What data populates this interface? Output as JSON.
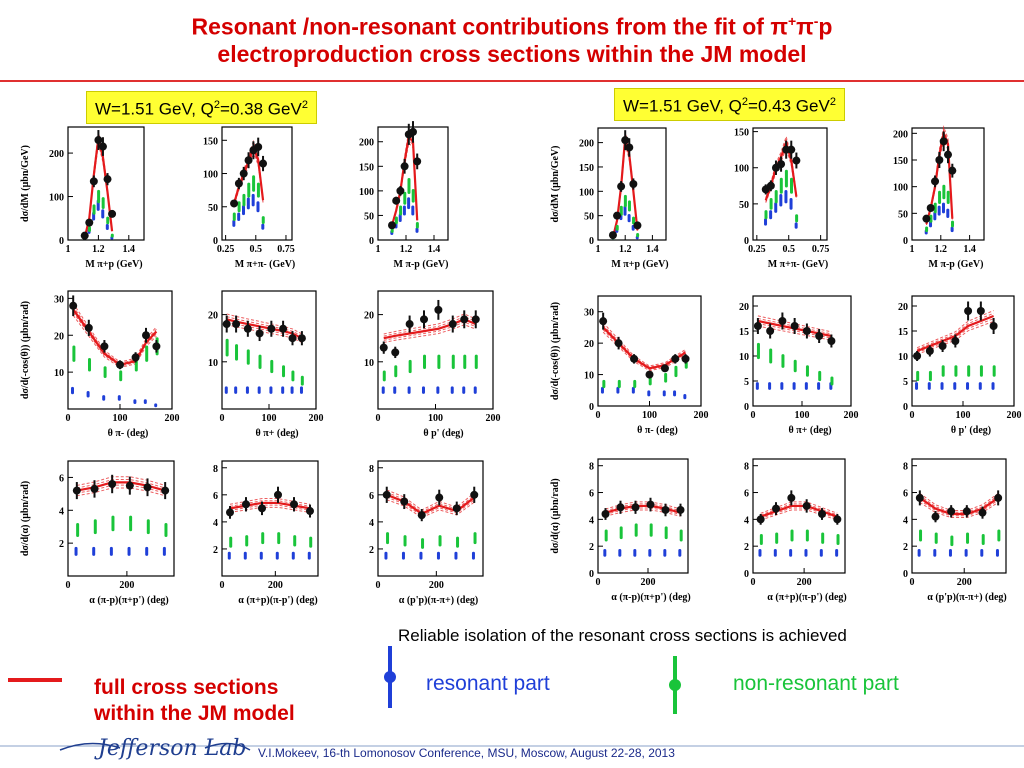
{
  "title": {
    "line1_prefix": "Resonant /non-resonant contributions  from the fit of  π",
    "sup_plus": "+",
    "mid": "π",
    "sup_minus": "-",
    "suffix": "p",
    "line2": "electroproduction cross sections within the JM model"
  },
  "left_label": {
    "prefix": "W=1.51 GeV, Q",
    "sup": "2",
    "mid": "=0.38 GeV",
    "sup2": "2"
  },
  "right_label": {
    "prefix": "W=1.51 GeV, Q",
    "sup": "2",
    "mid": "=0.43 GeV",
    "sup2": "2"
  },
  "note": "Reliable isolation of the resonant cross sections is achieved",
  "legend": {
    "full": "full cross sections\nwithin the JM model",
    "full_line1": "full cross sections",
    "full_line2": "within the JM model",
    "resonant": "resonant part",
    "nonresonant": "non-resonant part"
  },
  "footer": "V.I.Mokeev, 16-th Lomonosov Conference, MSU, Moscow, August 22-28, 2013",
  "logo_text": "Jefferson Lab",
  "colors": {
    "full": "#e41a1c",
    "resonant": "#1f3fd8",
    "nonresonant": "#19c43a",
    "data": "#111111"
  },
  "chart_data": [
    {
      "type": "scatter",
      "id": "L-r1c1",
      "ylabel": "dσ/dM (μbn/GeV)",
      "xlabel": "M_π+p (GeV)",
      "xticks": [
        "1",
        "1.2",
        "1.4"
      ],
      "xlim": [
        1.0,
        1.5
      ],
      "ylim": [
        0,
        260
      ],
      "yticks": [
        "0",
        "100",
        "200"
      ],
      "x": [
        1.11,
        1.14,
        1.17,
        1.2,
        1.23,
        1.26,
        1.29
      ],
      "data": [
        10,
        40,
        135,
        230,
        215,
        140,
        60
      ],
      "full": [
        5,
        50,
        150,
        235,
        190,
        110,
        20
      ],
      "resonant": [
        5,
        20,
        55,
        80,
        60,
        30,
        5
      ],
      "nonresonant": [
        5,
        25,
        70,
        100,
        85,
        45,
        10
      ]
    },
    {
      "type": "scatter",
      "id": "L-r1c2",
      "ylabel": "",
      "xlabel": "M_π+π- (GeV)",
      "xticks": [
        "0.25",
        "0.5",
        "0.75"
      ],
      "xlim": [
        0.22,
        0.8
      ],
      "ylim": [
        0,
        170
      ],
      "yticks": [
        "0",
        "50",
        "100",
        "150"
      ],
      "x": [
        0.32,
        0.36,
        0.4,
        0.44,
        0.48,
        0.52,
        0.56
      ],
      "data": [
        55,
        85,
        100,
        120,
        135,
        140,
        115
      ],
      "full": [
        55,
        80,
        100,
        118,
        140,
        120,
        60
      ],
      "resonant": [
        25,
        35,
        45,
        55,
        60,
        50,
        20
      ],
      "nonresonant": [
        35,
        50,
        60,
        75,
        85,
        75,
        30
      ]
    },
    {
      "type": "scatter",
      "id": "L-r1c3",
      "ylabel": "",
      "xlabel": "M_π-p (GeV)",
      "xticks": [
        "1",
        "1.2",
        "1.4"
      ],
      "xlim": [
        1.0,
        1.5
      ],
      "ylim": [
        0,
        230
      ],
      "yticks": [
        "0",
        "50",
        "100",
        "150",
        "200"
      ],
      "x": [
        1.1,
        1.13,
        1.16,
        1.19,
        1.22,
        1.25,
        1.28
      ],
      "data": [
        30,
        80,
        100,
        150,
        215,
        220,
        160
      ],
      "full": [
        30,
        60,
        100,
        160,
        210,
        200,
        40
      ],
      "resonant": [
        15,
        30,
        45,
        60,
        75,
        60,
        20
      ],
      "nonresonant": [
        20,
        40,
        60,
        85,
        110,
        90,
        30
      ]
    },
    {
      "type": "scatter",
      "id": "L-r2c1",
      "ylabel": "dσ/d(-cos(θ)) (μbn/rad)",
      "xlabel": "θ_π- (deg)",
      "xticks": [
        "0",
        "100",
        "200"
      ],
      "xlim": [
        0,
        200
      ],
      "ylim": [
        0,
        32
      ],
      "yticks": [
        "10",
        "20",
        "30"
      ],
      "x": [
        10,
        40,
        70,
        100,
        130,
        150,
        170
      ],
      "data": [
        28,
        22,
        17,
        12,
        14,
        20,
        17
      ],
      "full": [
        27,
        21,
        15,
        12,
        13,
        18,
        21
      ],
      "resonant": [
        5,
        4,
        3,
        3,
        2,
        2,
        1
      ],
      "nonresonant": [
        15,
        12,
        10,
        9,
        12,
        15,
        17
      ]
    },
    {
      "type": "scatter",
      "id": "L-r2c2",
      "ylabel": "",
      "xlabel": "θ_π+ (deg)",
      "xticks": [
        "0",
        "100",
        "200"
      ],
      "xlim": [
        0,
        200
      ],
      "ylim": [
        0,
        25
      ],
      "yticks": [
        "10",
        "20"
      ],
      "x": [
        10,
        30,
        55,
        80,
        105,
        130,
        150,
        170
      ],
      "data": [
        18,
        18,
        17,
        16,
        17,
        17,
        15,
        15
      ],
      "full": [
        19,
        18.5,
        18,
        17.5,
        17,
        16.5,
        16,
        15
      ],
      "resonant": [
        4,
        4,
        4,
        4,
        4,
        4,
        4,
        4
      ],
      "nonresonant": [
        13,
        12,
        11,
        10,
        9,
        8,
        7,
        6
      ]
    },
    {
      "type": "scatter",
      "id": "L-r2c3",
      "ylabel": "",
      "xlabel": "θ_p' (deg)",
      "xticks": [
        "0",
        "100",
        "200"
      ],
      "xlim": [
        0,
        200
      ],
      "ylim": [
        0,
        25
      ],
      "yticks": [
        "10",
        "20"
      ],
      "x": [
        10,
        30,
        55,
        80,
        105,
        130,
        150,
        170
      ],
      "data": [
        13,
        12,
        18,
        19,
        21,
        18,
        19,
        19
      ],
      "full": [
        15,
        15.5,
        16,
        16.5,
        17,
        18,
        19,
        18
      ],
      "resonant": [
        4,
        4,
        4,
        4,
        4,
        4,
        4,
        4
      ],
      "nonresonant": [
        7,
        8,
        9,
        10,
        10,
        10,
        10,
        10
      ]
    },
    {
      "type": "scatter",
      "id": "L-r3c1",
      "ylabel": "dσ/d(α) (μbn/rad)",
      "xlabel": "α_(π-p)(π+p') (deg)",
      "xticks": [
        "0",
        "200"
      ],
      "xlim": [
        0,
        360
      ],
      "ylim": [
        0,
        7
      ],
      "yticks": [
        "2",
        "4",
        "6"
      ],
      "x": [
        30,
        90,
        150,
        210,
        270,
        330
      ],
      "data": [
        5.2,
        5.3,
        5.6,
        5.5,
        5.4,
        5.2
      ],
      "full": [
        5.2,
        5.4,
        5.7,
        5.7,
        5.5,
        5.2
      ],
      "resonant": [
        1.5,
        1.5,
        1.5,
        1.5,
        1.5,
        1.5
      ],
      "nonresonant": [
        2.8,
        3.0,
        3.2,
        3.2,
        3.0,
        2.8
      ]
    },
    {
      "type": "scatter",
      "id": "L-r3c2",
      "ylabel": "",
      "xlabel": "α_(π+p)(π-p') (deg)",
      "xticks": [
        "0",
        "200"
      ],
      "xlim": [
        0,
        360
      ],
      "ylim": [
        0,
        8.5
      ],
      "yticks": [
        "2",
        "4",
        "6",
        "8"
      ],
      "x": [
        30,
        90,
        150,
        210,
        270,
        330
      ],
      "data": [
        4.7,
        5.3,
        5.0,
        6.0,
        5.3,
        4.8
      ],
      "full": [
        5,
        5.2,
        5.4,
        5.4,
        5.2,
        5
      ],
      "resonant": [
        1.5,
        1.5,
        1.5,
        1.5,
        1.5,
        1.5
      ],
      "nonresonant": [
        2.5,
        2.6,
        2.8,
        2.8,
        2.6,
        2.5
      ]
    },
    {
      "type": "scatter",
      "id": "L-r3c3",
      "ylabel": "",
      "xlabel": "α_(p'p)(π-π+) (deg)",
      "xticks": [
        "0",
        "200"
      ],
      "xlim": [
        0,
        360
      ],
      "ylim": [
        0,
        8.5
      ],
      "yticks": [
        "2",
        "4",
        "6",
        "8"
      ],
      "x": [
        30,
        90,
        150,
        210,
        270,
        330
      ],
      "data": [
        6.0,
        5.5,
        4.5,
        5.8,
        5.0,
        6.0
      ],
      "full": [
        6.0,
        5.5,
        4.6,
        5.2,
        4.8,
        5.8
      ],
      "resonant": [
        1.5,
        1.5,
        1.5,
        1.5,
        1.5,
        1.5
      ],
      "nonresonant": [
        2.8,
        2.6,
        2.4,
        2.6,
        2.5,
        2.8
      ]
    },
    {
      "type": "scatter",
      "id": "R-r1c1",
      "ylabel": "dσ/dM (μbn/GeV)",
      "xlabel": "M_π+p (GeV)",
      "xticks": [
        "1",
        "1.2",
        "1.4"
      ],
      "xlim": [
        1.0,
        1.5
      ],
      "ylim": [
        0,
        230
      ],
      "yticks": [
        "0",
        "50",
        "100",
        "150",
        "200"
      ],
      "x": [
        1.11,
        1.14,
        1.17,
        1.2,
        1.23,
        1.26,
        1.29
      ],
      "data": [
        10,
        50,
        110,
        205,
        190,
        115,
        30
      ],
      "full": [
        5,
        40,
        110,
        210,
        175,
        100,
        20
      ],
      "resonant": [
        5,
        20,
        50,
        60,
        45,
        25,
        5
      ],
      "nonresonant": [
        5,
        25,
        60,
        80,
        70,
        40,
        10
      ]
    },
    {
      "type": "scatter",
      "id": "R-r1c2",
      "ylabel": "",
      "xlabel": "M_π+π- (GeV)",
      "xticks": [
        "0.25",
        "0.5",
        "0.75"
      ],
      "xlim": [
        0.22,
        0.8
      ],
      "ylim": [
        0,
        155
      ],
      "yticks": [
        "0",
        "50",
        "100",
        "150"
      ],
      "x": [
        0.32,
        0.36,
        0.4,
        0.44,
        0.48,
        0.52,
        0.56
      ],
      "data": [
        70,
        75,
        100,
        105,
        125,
        125,
        110
      ],
      "full": [
        55,
        75,
        100,
        115,
        135,
        110,
        60
      ],
      "resonant": [
        25,
        35,
        45,
        55,
        60,
        50,
        20
      ],
      "nonresonant": [
        35,
        50,
        60,
        75,
        85,
        75,
        30
      ]
    },
    {
      "type": "scatter",
      "id": "R-r1c3",
      "ylabel": "",
      "xlabel": "M_π-p (GeV)",
      "xticks": [
        "1",
        "1.2",
        "1.4"
      ],
      "xlim": [
        1.0,
        1.5
      ],
      "ylim": [
        0,
        210
      ],
      "yticks": [
        "0",
        "50",
        "100",
        "150",
        "200"
      ],
      "x": [
        1.1,
        1.13,
        1.16,
        1.19,
        1.22,
        1.25,
        1.28
      ],
      "data": [
        40,
        60,
        110,
        150,
        185,
        160,
        130
      ],
      "full": [
        30,
        60,
        100,
        160,
        200,
        180,
        40
      ],
      "resonant": [
        15,
        30,
        45,
        55,
        60,
        50,
        20
      ],
      "nonresonant": [
        20,
        40,
        60,
        80,
        90,
        80,
        30
      ]
    },
    {
      "type": "scatter",
      "id": "R-r2c1",
      "ylabel": "dσ/d(-cos(θ)) (μbn/rad)",
      "xlabel": "θ_π- (deg)",
      "xticks": [
        "0",
        "100",
        "200"
      ],
      "xlim": [
        0,
        200
      ],
      "ylim": [
        0,
        35
      ],
      "yticks": [
        "0",
        "10",
        "20",
        "30"
      ],
      "x": [
        10,
        40,
        70,
        100,
        130,
        150,
        170
      ],
      "data": [
        27,
        20,
        15,
        10,
        12,
        15,
        15
      ],
      "full": [
        25,
        20,
        15,
        12,
        13,
        15,
        17
      ],
      "resonant": [
        5,
        5,
        5,
        4,
        4,
        4,
        3
      ],
      "nonresonant": [
        7,
        7,
        7,
        8,
        9,
        11,
        14
      ]
    },
    {
      "type": "scatter",
      "id": "R-r2c2",
      "ylabel": "",
      "xlabel": "θ_π+ (deg)",
      "xticks": [
        "0",
        "100",
        "200"
      ],
      "xlim": [
        0,
        200
      ],
      "ylim": [
        0,
        22
      ],
      "yticks": [
        "0",
        "5",
        "10",
        "15",
        "20"
      ],
      "x": [
        10,
        35,
        60,
        85,
        110,
        135,
        160
      ],
      "data": [
        16,
        15,
        17,
        16,
        15,
        14,
        13
      ],
      "full": [
        17,
        16.5,
        16,
        15.5,
        15,
        14.5,
        14
      ],
      "resonant": [
        4,
        4,
        4,
        4,
        4,
        4,
        4
      ],
      "nonresonant": [
        11,
        10,
        9,
        8,
        7,
        6,
        5
      ]
    },
    {
      "type": "scatter",
      "id": "R-r2c3",
      "ylabel": "",
      "xlabel": "θ_p' (deg)",
      "xticks": [
        "0",
        "100",
        "200"
      ],
      "xlim": [
        0,
        200
      ],
      "ylim": [
        0,
        22
      ],
      "yticks": [
        "0",
        "5",
        "10",
        "15",
        "20"
      ],
      "x": [
        10,
        35,
        60,
        85,
        110,
        135,
        160
      ],
      "data": [
        10,
        11,
        12,
        13,
        19,
        19,
        16
      ],
      "full": [
        11,
        12,
        13,
        14,
        16,
        17,
        18
      ],
      "resonant": [
        4,
        4,
        4,
        4,
        4,
        4,
        4
      ],
      "nonresonant": [
        6,
        6,
        7,
        7,
        7,
        7,
        7
      ]
    },
    {
      "type": "scatter",
      "id": "R-r3c1",
      "ylabel": "dσ/d(α) (μbn/rad)",
      "xlabel": "α_(π-p)(π+p') (deg)",
      "xticks": [
        "0",
        "200"
      ],
      "xlim": [
        0,
        360
      ],
      "ylim": [
        0,
        8.5
      ],
      "yticks": [
        "0",
        "2",
        "4",
        "6",
        "8"
      ],
      "x": [
        30,
        90,
        150,
        210,
        270,
        330
      ],
      "data": [
        4.4,
        4.9,
        4.9,
        5.1,
        4.7,
        4.7
      ],
      "full": [
        4.5,
        4.8,
        5.0,
        5.0,
        4.8,
        4.5
      ],
      "resonant": [
        1.5,
        1.5,
        1.5,
        1.5,
        1.5,
        1.5
      ],
      "nonresonant": [
        2.8,
        3.0,
        3.2,
        3.2,
        3.0,
        2.8
      ]
    },
    {
      "type": "scatter",
      "id": "R-r3c2",
      "ylabel": "",
      "xlabel": "α_(π+p)(π-p') (deg)",
      "xticks": [
        "0",
        "200"
      ],
      "xlim": [
        0,
        360
      ],
      "ylim": [
        0,
        8.5
      ],
      "yticks": [
        "0",
        "2",
        "4",
        "6",
        "8"
      ],
      "x": [
        30,
        90,
        150,
        210,
        270,
        330
      ],
      "data": [
        4,
        4.8,
        5.6,
        5,
        4.4,
        4
      ],
      "full": [
        4.2,
        4.6,
        5,
        5,
        4.6,
        4.2
      ],
      "resonant": [
        1.5,
        1.5,
        1.5,
        1.5,
        1.5,
        1.5
      ],
      "nonresonant": [
        2.5,
        2.6,
        2.8,
        2.8,
        2.6,
        2.5
      ]
    },
    {
      "type": "scatter",
      "id": "R-r3c3",
      "ylabel": "",
      "xlabel": "α_(p'p)(π-π+) (deg)",
      "xticks": [
        "0",
        "200"
      ],
      "xlim": [
        0,
        360
      ],
      "ylim": [
        0,
        8.5
      ],
      "yticks": [
        "0",
        "2",
        "4",
        "6",
        "8"
      ],
      "x": [
        30,
        90,
        150,
        210,
        270,
        330
      ],
      "data": [
        5.6,
        4.2,
        4.6,
        4.6,
        4.5,
        5.6
      ],
      "full": [
        5.6,
        4.8,
        4.4,
        4.4,
        4.8,
        5.6
      ],
      "resonant": [
        1.5,
        1.5,
        1.5,
        1.5,
        1.5,
        1.5
      ],
      "nonresonant": [
        2.8,
        2.6,
        2.4,
        2.6,
        2.5,
        2.8
      ]
    }
  ]
}
